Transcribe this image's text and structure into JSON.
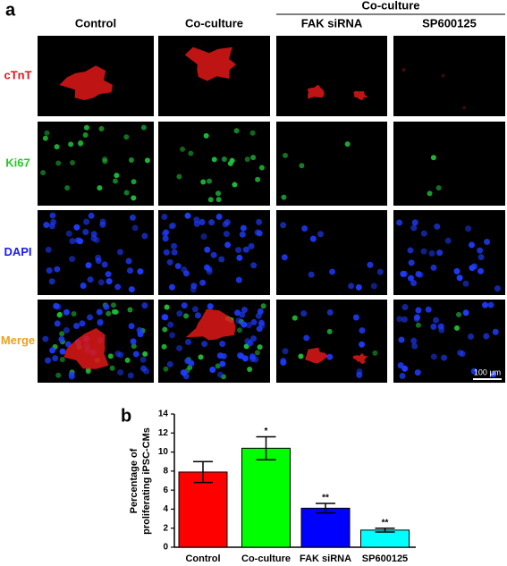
{
  "panel_a": {
    "label": "a",
    "group_label": "Co-culture",
    "columns": [
      "Control",
      "Co-culture",
      "FAK siRNA",
      "SP600125"
    ],
    "rows": [
      {
        "name": "cTnT",
        "color": "#e8141b"
      },
      {
        "name": "Ki67",
        "color": "#22cc22"
      },
      {
        "name": "DAPI",
        "color": "#1a1aff"
      },
      {
        "name": "Merge",
        "color": "#f0a020"
      }
    ],
    "scale_bar": "100 μm"
  },
  "chart_data": {
    "type": "bar",
    "label": "b",
    "ylabel": [
      "Percentage of",
      "proliferating iPSC-CMs"
    ],
    "categories": [
      "Control",
      "Co-culture",
      "FAK siRNA",
      "SP600125"
    ],
    "values": [
      7.9,
      10.4,
      4.1,
      1.8
    ],
    "errors": [
      1.1,
      1.2,
      0.5,
      0.2
    ],
    "annotations": [
      null,
      "*",
      "**",
      "**"
    ],
    "colors": [
      "#ff0000",
      "#00ff00",
      "#0000ff",
      "#00ffff"
    ],
    "ylim": [
      0,
      14
    ],
    "yticks": [
      0,
      2,
      4,
      6,
      8,
      10,
      12,
      14
    ]
  }
}
